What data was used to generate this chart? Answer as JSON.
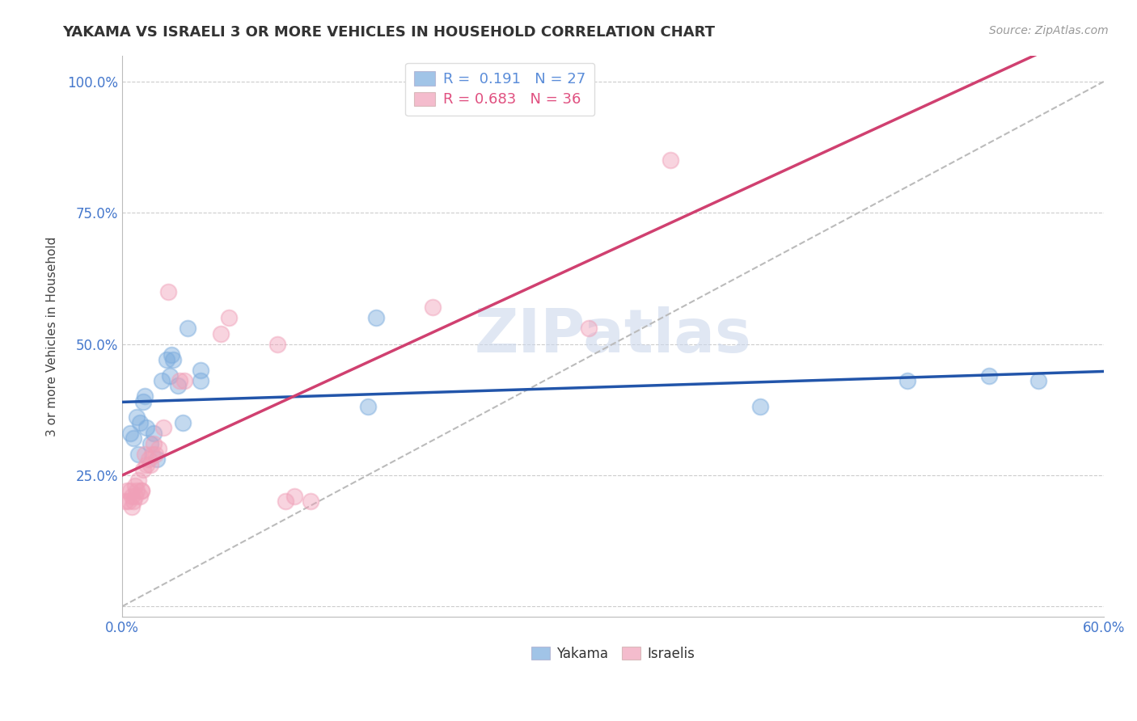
{
  "title": "YAKAMA VS ISRAELI 3 OR MORE VEHICLES IN HOUSEHOLD CORRELATION CHART",
  "source": "Source: ZipAtlas.com",
  "ylabel": "3 or more Vehicles in Household",
  "xlim": [
    0.0,
    0.6
  ],
  "ylim": [
    -2,
    105
  ],
  "xticks": [
    0.0,
    0.06,
    0.12,
    0.18,
    0.24,
    0.3,
    0.36,
    0.42,
    0.48,
    0.54,
    0.6
  ],
  "xtick_labels": [
    "0.0%",
    "",
    "",
    "",
    "",
    "",
    "",
    "",
    "",
    "",
    "60.0%"
  ],
  "yticks": [
    0,
    25,
    50,
    75,
    100
  ],
  "ytick_labels": [
    "",
    "25.0%",
    "50.0%",
    "75.0%",
    "100.0%"
  ],
  "watermark": "ZIPatlas",
  "legend_entries": [
    {
      "label": "R =  0.191   N = 27",
      "color": "#5b8dd9"
    },
    {
      "label": "R = 0.683   N = 36",
      "color": "#e05080"
    }
  ],
  "yakama_color": "#7aabdd",
  "israeli_color": "#f0a0b8",
  "regression_yakama_color": "#2255aa",
  "regression_israeli_color": "#d04070",
  "regression_dashed_color": "#bbbbbb",
  "yakama_points": [
    [
      0.005,
      33
    ],
    [
      0.007,
      32
    ],
    [
      0.009,
      36
    ],
    [
      0.01,
      29
    ],
    [
      0.011,
      35
    ],
    [
      0.013,
      39
    ],
    [
      0.014,
      40
    ],
    [
      0.015,
      34
    ],
    [
      0.017,
      31
    ],
    [
      0.019,
      33
    ],
    [
      0.021,
      28
    ],
    [
      0.024,
      43
    ],
    [
      0.027,
      47
    ],
    [
      0.029,
      44
    ],
    [
      0.03,
      48
    ],
    [
      0.031,
      47
    ],
    [
      0.034,
      42
    ],
    [
      0.037,
      35
    ],
    [
      0.04,
      53
    ],
    [
      0.048,
      43
    ],
    [
      0.048,
      45
    ],
    [
      0.15,
      38
    ],
    [
      0.155,
      55
    ],
    [
      0.39,
      38
    ],
    [
      0.48,
      43
    ],
    [
      0.53,
      44
    ],
    [
      0.56,
      43
    ]
  ],
  "israeli_points": [
    [
      0.002,
      20
    ],
    [
      0.003,
      22
    ],
    [
      0.004,
      20
    ],
    [
      0.005,
      22
    ],
    [
      0.006,
      19
    ],
    [
      0.006,
      21
    ],
    [
      0.007,
      20
    ],
    [
      0.008,
      21
    ],
    [
      0.008,
      23
    ],
    [
      0.009,
      22
    ],
    [
      0.01,
      24
    ],
    [
      0.011,
      21
    ],
    [
      0.012,
      22
    ],
    [
      0.012,
      22
    ],
    [
      0.013,
      26
    ],
    [
      0.014,
      29
    ],
    [
      0.015,
      27
    ],
    [
      0.016,
      28
    ],
    [
      0.017,
      27
    ],
    [
      0.018,
      29
    ],
    [
      0.019,
      31
    ],
    [
      0.02,
      29
    ],
    [
      0.022,
      30
    ],
    [
      0.025,
      34
    ],
    [
      0.028,
      60
    ],
    [
      0.035,
      43
    ],
    [
      0.038,
      43
    ],
    [
      0.06,
      52
    ],
    [
      0.065,
      55
    ],
    [
      0.095,
      50
    ],
    [
      0.1,
      20
    ],
    [
      0.105,
      21
    ],
    [
      0.115,
      20
    ],
    [
      0.19,
      57
    ],
    [
      0.285,
      53
    ],
    [
      0.335,
      85
    ]
  ]
}
